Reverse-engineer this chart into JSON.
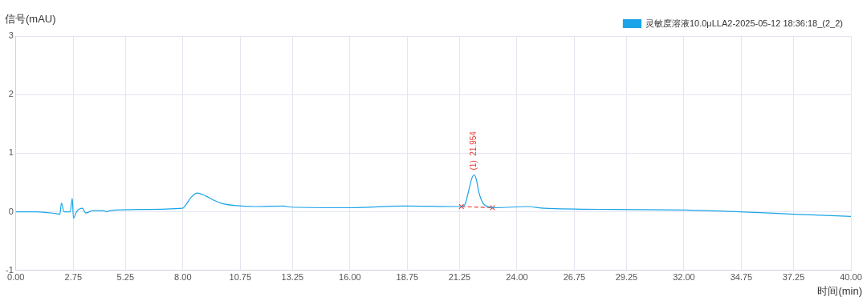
{
  "chart_data": {
    "type": "line",
    "xlabel": "时间(min)",
    "ylabel": "信号(mAU)",
    "xlim": [
      0,
      40
    ],
    "ylim": [
      -1,
      3
    ],
    "xticks": [
      {
        "value": 0,
        "label": "0.00"
      },
      2.75,
      5.25,
      {
        "value": 8,
        "label": "8.00"
      },
      10.75,
      13.25,
      {
        "value": 16,
        "label": "16.00"
      },
      18.75,
      21.25,
      {
        "value": 24,
        "label": "24.00"
      },
      26.75,
      29.25,
      {
        "value": 32,
        "label": "32.00"
      },
      34.75,
      37.25,
      {
        "value": 40,
        "label": "40.00"
      }
    ],
    "yticks": [
      -1,
      0,
      1,
      2,
      3
    ],
    "grid": true,
    "legend": "top right",
    "marker": "none",
    "series": [
      {
        "name": "灵敏度溶液10.0μLLA2-2025-05-12 18:36:18_(2_2)",
        "color": "#1aa3e8",
        "line_style": "solid",
        "x": [
          0,
          1.0,
          1.92,
          2.11,
          2.18,
          2.31,
          2.6,
          2.7,
          2.76,
          2.9,
          3.19,
          3.35,
          3.67,
          4.2,
          4.33,
          4.5,
          6.0,
          7.98,
          8.1,
          8.4,
          8.69,
          9.1,
          9.54,
          9.9,
          10.44,
          11.5,
          12.8,
          13.2,
          16.1,
          18.5,
          21.15,
          21.34,
          21.53,
          21.65,
          21.85,
          21.96,
          22.05,
          22.18,
          22.3,
          22.44,
          22.95,
          24.5,
          25.3,
          28.8,
          32.1,
          34.7,
          37.3,
          40.0
        ],
        "values": [
          0,
          0,
          -0.03,
          -0.04,
          0.15,
          0,
          0,
          0.23,
          -0.11,
          0,
          0.06,
          -0.02,
          0.02,
          0.02,
          0,
          0.02,
          0.04,
          0.06,
          0.1,
          0.25,
          0.32,
          0.27,
          0.19,
          0.14,
          0.11,
          0.09,
          0.1,
          0.08,
          0.07,
          0.1,
          0.09,
          0.09,
          0.14,
          0.3,
          0.58,
          0.63,
          0.56,
          0.33,
          0.2,
          0.12,
          0.07,
          0.09,
          0.06,
          0.04,
          0.03,
          0,
          -0.04,
          -0.08
        ]
      },
      {
        "color": "#e8413c",
        "line_style": "dashed",
        "marker": "cross",
        "x": [
          21.34,
          22.83
        ],
        "values": [
          0.09,
          0.07
        ]
      }
    ],
    "annotations": [
      {
        "text": "(1)  21.954",
        "x": 21.954,
        "y": 0.63
      }
    ]
  }
}
